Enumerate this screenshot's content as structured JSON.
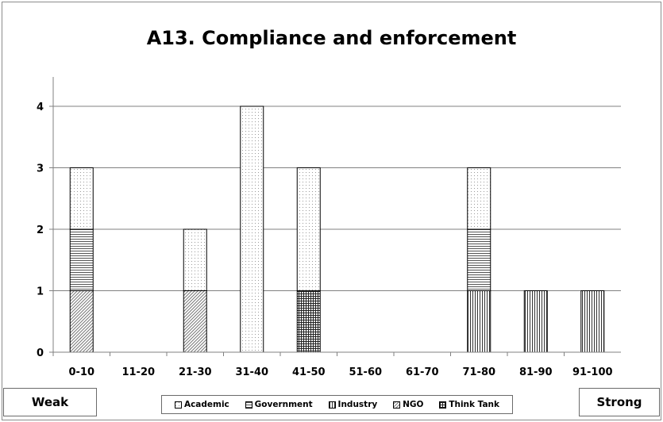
{
  "chart_data": {
    "type": "bar",
    "stacked": true,
    "title": "A13. Compliance and enforcement",
    "xlabel": "",
    "ylabel": "",
    "categories": [
      "0-10",
      "11-20",
      "21-30",
      "31-40",
      "41-50",
      "51-60",
      "61-70",
      "71-80",
      "81-90",
      "91-100"
    ],
    "ylim": [
      0,
      4
    ],
    "yticks": [
      0,
      1,
      2,
      3,
      4
    ],
    "grid": true,
    "legend_position": "bottom",
    "series": [
      {
        "name": "Think Tank",
        "pattern": "crosshatch",
        "values": [
          0,
          0,
          0,
          0,
          1,
          0,
          0,
          0,
          0,
          0
        ]
      },
      {
        "name": "Industry",
        "pattern": "vertical",
        "values": [
          0,
          0,
          0,
          0,
          0,
          0,
          0,
          1,
          1,
          1
        ]
      },
      {
        "name": "NGO",
        "pattern": "diagonal",
        "values": [
          1,
          0,
          1,
          0,
          0,
          0,
          0,
          0,
          0,
          0
        ]
      },
      {
        "name": "Government",
        "pattern": "horizontal",
        "values": [
          1,
          0,
          0,
          0,
          0,
          0,
          0,
          1,
          0,
          0
        ]
      },
      {
        "name": "Academic",
        "pattern": "dots",
        "values": [
          1,
          0,
          1,
          4,
          2,
          0,
          0,
          1,
          0,
          0
        ]
      }
    ],
    "legend_order": [
      "Academic",
      "Government",
      "Industry",
      "NGO",
      "Think Tank"
    ]
  },
  "scale_labels": {
    "left": "Weak",
    "right": "Strong"
  },
  "colors": {
    "bar_stroke": "#000000",
    "grid": "#808080",
    "axis": "#808080",
    "frame": "#8c8c8c"
  }
}
